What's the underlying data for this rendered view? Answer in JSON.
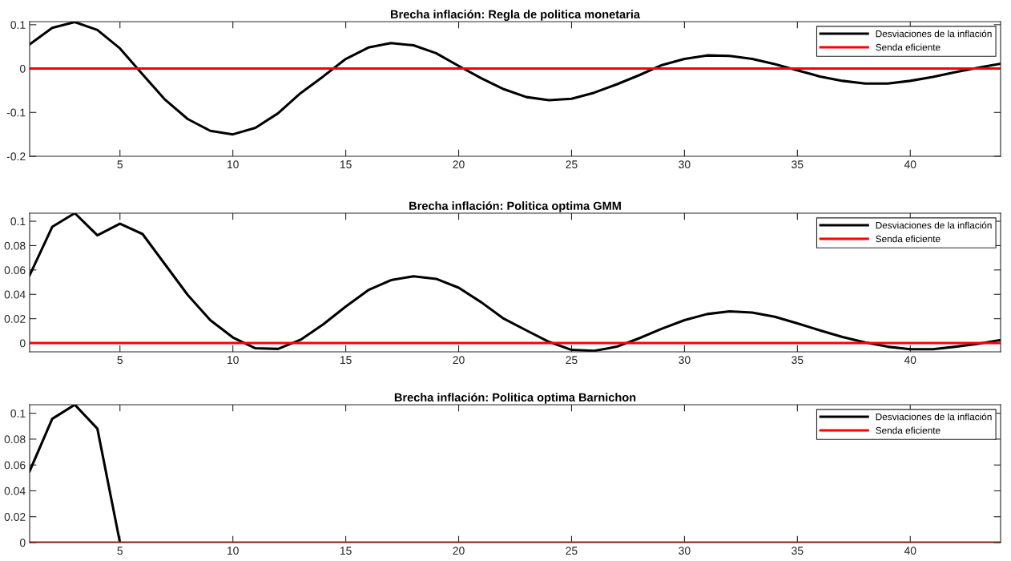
{
  "chart_data": [
    {
      "type": "line",
      "title": "Brecha inflación: Regla de politica monetaria",
      "xlim": [
        1,
        44
      ],
      "ylim": [
        -0.2,
        0.107
      ],
      "xticks": [
        5,
        10,
        15,
        20,
        25,
        30,
        35,
        40
      ],
      "yticks": [
        -0.2,
        -0.1,
        0,
        0.1
      ],
      "legend": "top right",
      "grid": false,
      "series": [
        {
          "name": "Desviaciones de la inflación",
          "color": "#000000",
          "x": [
            1,
            2,
            3,
            4,
            5,
            6,
            7,
            8,
            9,
            10,
            11,
            12,
            13,
            14,
            15,
            16,
            17,
            18,
            19,
            20,
            21,
            22,
            23,
            24,
            25,
            26,
            27,
            28,
            29,
            30,
            31,
            32,
            33,
            34,
            35,
            36,
            37,
            38,
            39,
            40,
            41,
            42,
            43,
            44
          ],
          "values": [
            0.055,
            0.093,
            0.106,
            0.088,
            0.046,
            -0.013,
            -0.071,
            -0.115,
            -0.142,
            -0.15,
            -0.135,
            -0.102,
            -0.056,
            -0.018,
            0.022,
            0.048,
            0.058,
            0.053,
            0.035,
            0.006,
            -0.022,
            -0.047,
            -0.065,
            -0.072,
            -0.069,
            -0.055,
            -0.036,
            -0.015,
            0.008,
            0.022,
            0.03,
            0.029,
            0.022,
            0.01,
            -0.004,
            -0.018,
            -0.028,
            -0.034,
            -0.034,
            -0.028,
            -0.019,
            -0.008,
            0.002,
            0.011
          ]
        },
        {
          "name": "Senda eficiente",
          "color": "#ff0000",
          "x": [
            1,
            44
          ],
          "values": [
            0,
            0
          ]
        }
      ]
    },
    {
      "type": "line",
      "title": "Brecha inflación: Politica optima GMM",
      "xlim": [
        1,
        44
      ],
      "ylim": [
        -0.0072,
        0.1066
      ],
      "xticks": [
        5,
        10,
        15,
        20,
        25,
        30,
        35,
        40
      ],
      "yticks": [
        0,
        0.02,
        0.04,
        0.06,
        0.08,
        0.1
      ],
      "legend": "top right",
      "grid": false,
      "series": [
        {
          "name": "Desviaciones de la inflación",
          "color": "#000000",
          "x": [
            1,
            2,
            3,
            4,
            5,
            6,
            7,
            8,
            9,
            10,
            11,
            12,
            13,
            14,
            15,
            16,
            17,
            18,
            19,
            20,
            21,
            22,
            23,
            24,
            25,
            26,
            27,
            28,
            29,
            30,
            31,
            32,
            33,
            34,
            35,
            36,
            37,
            38,
            39,
            40,
            41,
            42,
            43,
            44
          ],
          "values": [
            0.0556,
            0.0954,
            0.1066,
            0.0884,
            0.098,
            0.0895,
            0.0645,
            0.0395,
            0.0188,
            0.0046,
            -0.0043,
            -0.0048,
            0.0027,
            0.0153,
            0.03,
            0.0435,
            0.0516,
            0.0548,
            0.0527,
            0.0454,
            0.0335,
            0.02,
            0.0104,
            0.001,
            -0.0056,
            -0.0064,
            -0.003,
            0.004,
            0.0118,
            0.0188,
            0.0238,
            0.026,
            0.025,
            0.0216,
            0.0162,
            0.0104,
            0.005,
            0.0006,
            -0.003,
            -0.005,
            -0.005,
            -0.003,
            -0.0006,
            0.0025
          ]
        },
        {
          "name": "Senda eficiente",
          "color": "#ff0000",
          "x": [
            1,
            44
          ],
          "values": [
            0,
            0
          ]
        }
      ]
    },
    {
      "type": "line",
      "title": "Brecha inflación: Politica optima Barnichon",
      "xlim": [
        1,
        44
      ],
      "ylim": [
        0,
        0.1066
      ],
      "xticks": [
        5,
        10,
        15,
        20,
        25,
        30,
        35,
        40
      ],
      "yticks": [
        0,
        0.02,
        0.04,
        0.06,
        0.08,
        0.1
      ],
      "legend": "top right",
      "grid": false,
      "series": [
        {
          "name": "Desviaciones de la inflación",
          "color": "#000000",
          "x": [
            1,
            2,
            3,
            4,
            5
          ],
          "values": [
            0.0552,
            0.0957,
            0.1066,
            0.0881,
            0
          ]
        },
        {
          "name": "Senda eficiente",
          "color": "#ff0000",
          "x": [
            1,
            44
          ],
          "values": [
            0,
            0
          ]
        }
      ]
    }
  ]
}
